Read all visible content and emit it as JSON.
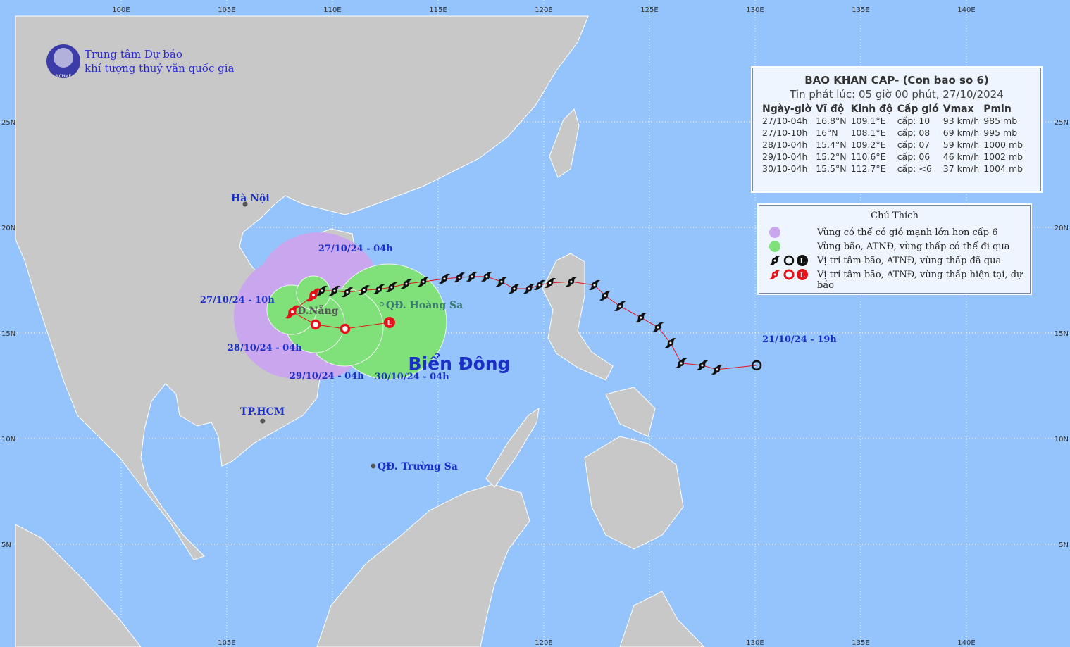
{
  "header": {
    "org_line1": "Trung tâm Dự báo",
    "org_line2": "khí tượng thuỷ văn quốc gia",
    "logo_text": "NCHMF"
  },
  "map": {
    "xlim": [
      94.27,
      144.9
    ],
    "ylim": [
      0.13,
      30.77
    ],
    "xticks": [
      {
        "value": 100,
        "label": "100E"
      },
      {
        "value": 105,
        "label": "105E"
      },
      {
        "value": 110,
        "label": "110E"
      },
      {
        "value": 115,
        "label": "115E"
      },
      {
        "value": 120,
        "label": "120E"
      },
      {
        "value": 125,
        "label": "125E"
      },
      {
        "value": 130,
        "label": "130E"
      },
      {
        "value": 135,
        "label": "135E"
      },
      {
        "value": 140,
        "label": "140E"
      }
    ],
    "yticks": [
      {
        "value": 5,
        "label": "5N"
      },
      {
        "value": 10,
        "label": "10N"
      },
      {
        "value": 15,
        "label": "15N"
      },
      {
        "value": 20,
        "label": "20N"
      },
      {
        "value": 25,
        "label": "25N"
      }
    ],
    "sea_name": "Biển Đông",
    "places": [
      {
        "name": "Hà Nội",
        "lon": 105.87,
        "lat": 21.1
      },
      {
        "name": "Đ.Nẵng",
        "lon": 108.07,
        "lat": 16.1
      },
      {
        "name": "QĐ. Hoàng Sa",
        "lon": 112.33,
        "lat": 16.37
      },
      {
        "name": "TP.HCM",
        "lon": 106.7,
        "lat": 10.83
      },
      {
        "name": "QĐ. Trường Sa",
        "lon": 111.93,
        "lat": 8.7
      }
    ]
  },
  "past_track": {
    "start_label": "21/10/24 - 19h",
    "lon": [
      130.07,
      128.2,
      127.5,
      126.5,
      126.0,
      125.4,
      124.6,
      123.6,
      122.9,
      122.4,
      121.3,
      120.3,
      119.8,
      119.3,
      118.6,
      118.0,
      117.3,
      116.6,
      116.0,
      115.3,
      114.3,
      113.5,
      112.8,
      112.2,
      111.5,
      110.7,
      110.1,
      109.5
    ],
    "lat": [
      13.47,
      13.27,
      13.47,
      13.57,
      14.53,
      15.27,
      15.73,
      16.27,
      16.77,
      17.27,
      17.43,
      17.37,
      17.27,
      17.1,
      17.1,
      17.43,
      17.67,
      17.67,
      17.63,
      17.57,
      17.43,
      17.33,
      17.17,
      17.07,
      17.03,
      16.93,
      17.0,
      17.0
    ]
  },
  "forecast": {
    "low_symbol": "L",
    "points": [
      {
        "label": "27/10/24 - 04h",
        "lon": 109.1,
        "lat": 16.8,
        "symbol": "storm"
      },
      {
        "label": "27/10/24 - 10h",
        "lon": 108.1,
        "lat": 16.0,
        "symbol": "storm"
      },
      {
        "label": "28/10/24 - 04h",
        "lon": 109.2,
        "lat": 15.4,
        "symbol": "depression"
      },
      {
        "label": "29/10/24 - 04h",
        "lon": 110.6,
        "lat": 15.2,
        "symbol": "depression"
      },
      {
        "label": "30/10/24 - 04h",
        "lon": 112.7,
        "lat": 15.5,
        "symbol": "low"
      }
    ]
  },
  "bulletin": {
    "title": "BAO KHAN CAP- (Con bao so 6)",
    "issued": "Tin phát lúc: 05 giờ 00 phút, 27/10/2024",
    "columns": [
      "Ngày-giờ",
      "Vĩ độ",
      "Kinh độ",
      "Cấp gió",
      "Vmax",
      "Pmin"
    ],
    "rows": [
      [
        "27/10-04h",
        "16.8°N",
        "109.1°E",
        "cấp: 10",
        "93 km/h",
        "985 mb"
      ],
      [
        "27/10-10h",
        "16°N",
        "108.1°E",
        "cấp: 08",
        "69 km/h",
        "995 mb"
      ],
      [
        "28/10-04h",
        "15.4°N",
        "109.2°E",
        "cấp: 07",
        "59 km/h",
        "1000 mb"
      ],
      [
        "29/10-04h",
        "15.2°N",
        "110.6°E",
        "cấp: 06",
        "46 km/h",
        "1002 mb"
      ],
      [
        "30/10-04h",
        "15.5°N",
        "112.7°E",
        "cấp: <6",
        "37 km/h",
        "1004 mb"
      ]
    ]
  },
  "legend": {
    "title": "Chú Thích",
    "items": [
      "Vùng có thể có gió mạnh lớn hơn cấp 6",
      "Vùng bão, ATNĐ, vùng thấp có thể đi qua",
      "Vị trí tâm bão, ATNĐ, vùng thấp đã qua",
      "Vị trí tâm bão, ATNĐ, vùng thấp hiện tại, dự báo"
    ]
  }
}
